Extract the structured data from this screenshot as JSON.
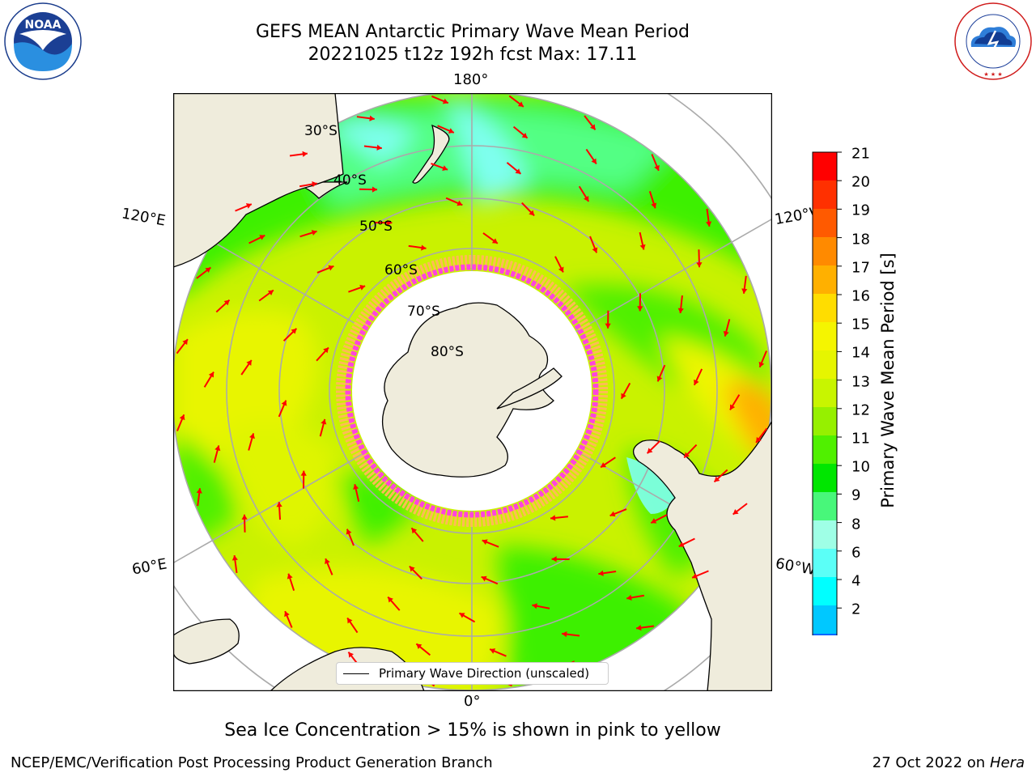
{
  "title": {
    "line1": "GEFS MEAN Antarctic Primary Wave Mean Period",
    "line2": "20221025 t12z 192h fcst   Max: 17.11"
  },
  "logos": {
    "left": "noaa-logo",
    "left_text": "NOAA",
    "right": "national-weather-service-logo",
    "right_text": "NATIONAL WEATHER SERVICE"
  },
  "map": {
    "projection": "south-polar-stereographic",
    "lon_labels": {
      "top": "180°",
      "bottom": "0°",
      "upper_left": "120°E",
      "upper_right": "120°W",
      "lower_left": "60°E",
      "lower_right": "60°W"
    },
    "lat_labels": [
      "30°S",
      "40°S",
      "50°S",
      "60°S",
      "70°S",
      "80°S"
    ],
    "legend_label": "Primary Wave Direction (unscaled)",
    "arrow_color": "#ff0000",
    "land_color": "#efecdc",
    "sea_ice_colors": [
      "#ff44dd",
      "#ff88cc",
      "#ffbb55"
    ]
  },
  "colorbar": {
    "label": "Primary Wave Mean Period [s]",
    "ticks": [
      "21",
      "20",
      "19",
      "18",
      "17",
      "16",
      "15",
      "14",
      "13",
      "12",
      "11",
      "10",
      "9",
      "8",
      "6",
      "4",
      "2"
    ],
    "colors_top_to_bottom": [
      "#ff0000",
      "#ff3000",
      "#ff5a00",
      "#ff8a00",
      "#ffb000",
      "#ffdd00",
      "#f5f500",
      "#e6f500",
      "#c8f500",
      "#96f000",
      "#50f000",
      "#00e600",
      "#48f77a",
      "#9fffe6",
      "#5bfff7",
      "#00ffff",
      "#00c8ff",
      "#0066ff"
    ],
    "extend_min_color": "#0000ff"
  },
  "note": "Sea Ice Concentration > 15% is shown in pink to yellow",
  "footer": {
    "left": "NCEP/EMC/Verification Post Processing Product Generation Branch",
    "right_date": "27 Oct 2022 on ",
    "right_host": "Hera"
  }
}
